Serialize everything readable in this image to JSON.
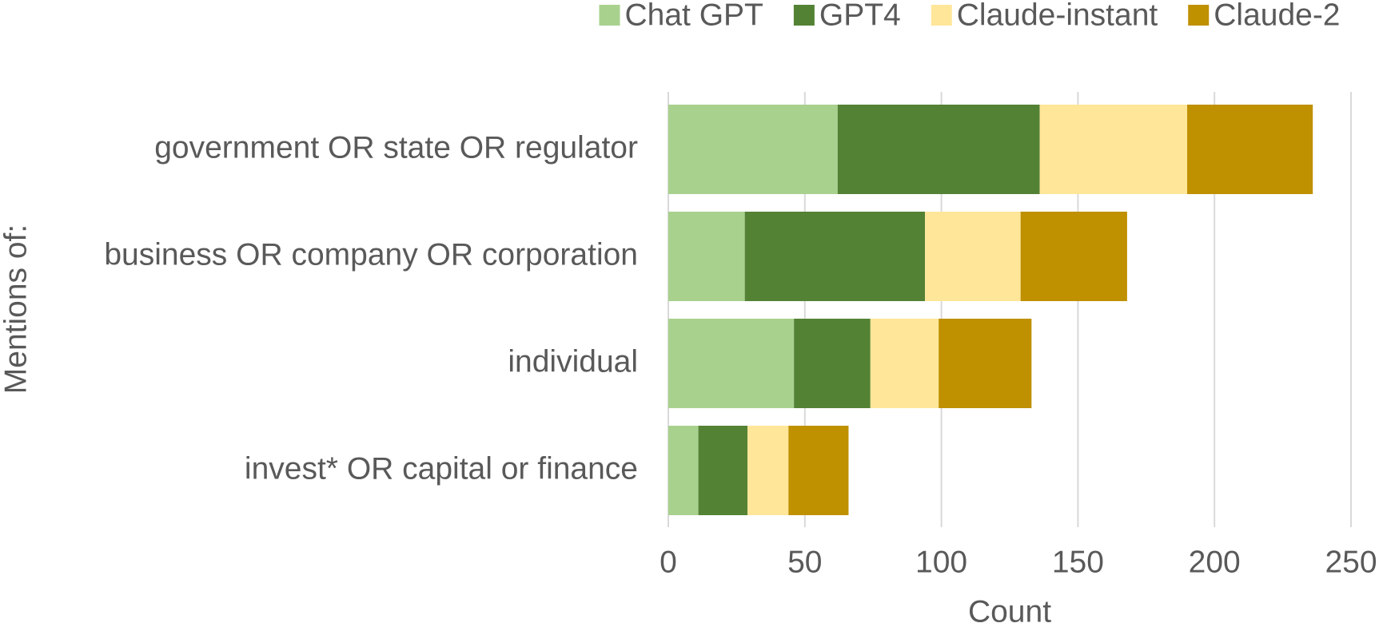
{
  "chart_data": {
    "type": "stacked-barh",
    "y_label": "Mentions of:",
    "x_label": "Count",
    "categories": [
      "government OR state OR regulator",
      "business OR company OR corporation",
      "individual",
      "invest* OR capital or finance"
    ],
    "series": [
      {
        "name": "Chat GPT",
        "color": "#a9d18e",
        "values": [
          62,
          28,
          46,
          11
        ]
      },
      {
        "name": "GPT4",
        "color": "#548235",
        "values": [
          74,
          66,
          28,
          18
        ]
      },
      {
        "name": "Claude-instant",
        "color": "#ffe699",
        "values": [
          54,
          35,
          25,
          15
        ]
      },
      {
        "name": "Claude-2",
        "color": "#bf9000",
        "values": [
          46,
          39,
          34,
          22
        ]
      }
    ],
    "xlim": [
      0,
      250
    ],
    "xticks": [
      0,
      50,
      100,
      150,
      200,
      250
    ],
    "grid": true,
    "legend": "top"
  }
}
